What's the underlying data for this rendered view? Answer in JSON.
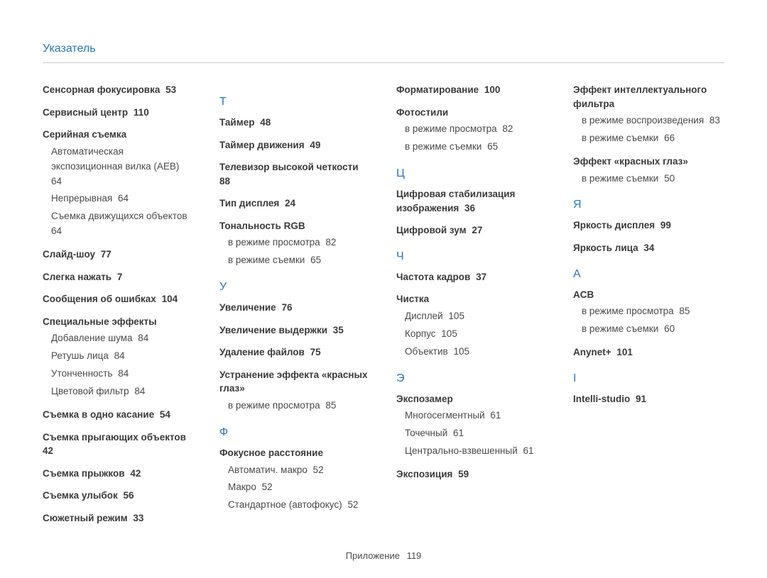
{
  "title": "Указатель",
  "footer": {
    "label": "Приложение",
    "page": "119"
  },
  "columns": [
    [
      {
        "type": "entry",
        "label": "Сенсорная фокусировка",
        "page": "53"
      },
      {
        "type": "entry",
        "label": "Сервисный центр",
        "page": "110"
      },
      {
        "type": "entry",
        "label": "Серийная съемка",
        "subs": [
          {
            "label": "Автоматическая экспозиционная вилка (AEB)",
            "page": "64"
          },
          {
            "label": "Непрерывная",
            "page": "64"
          },
          {
            "label": "Съемка движущихся объектов",
            "page": "64"
          }
        ]
      },
      {
        "type": "entry",
        "label": "Слайд-шоу",
        "page": "77"
      },
      {
        "type": "entry",
        "label": "Слегка нажать",
        "page": "7"
      },
      {
        "type": "entry",
        "label": "Сообщения об ошибках",
        "page": "104"
      },
      {
        "type": "entry",
        "label": "Специальные эффекты",
        "subs": [
          {
            "label": "Добавление шума",
            "page": "84"
          },
          {
            "label": "Ретушь лица",
            "page": "84"
          },
          {
            "label": "Утонченность",
            "page": "84"
          },
          {
            "label": "Цветовой фильтр",
            "page": "84"
          }
        ]
      },
      {
        "type": "entry",
        "label": "Съемка в одно касание",
        "page": "54"
      },
      {
        "type": "entry",
        "label": "Съемка прыгающих объектов",
        "page": "42"
      },
      {
        "type": "entry",
        "label": "Съемка прыжков",
        "page": "42"
      },
      {
        "type": "entry",
        "label": "Съемка улыбок",
        "page": "56"
      },
      {
        "type": "entry",
        "label": "Сюжетный режим",
        "page": "33"
      }
    ],
    [
      {
        "type": "letter",
        "label": "Т"
      },
      {
        "type": "entry",
        "label": "Таймер",
        "page": "48"
      },
      {
        "type": "entry",
        "label": "Таймер движения",
        "page": "49"
      },
      {
        "type": "entry",
        "label": "Телевизор высокой четкости",
        "page": "88"
      },
      {
        "type": "entry",
        "label": "Тип дисплея",
        "page": "24"
      },
      {
        "type": "entry",
        "label": "Тональность RGB",
        "subs": [
          {
            "label": "в режиме просмотра",
            "page": "82"
          },
          {
            "label": "в режиме съемки",
            "page": "65"
          }
        ]
      },
      {
        "type": "letter",
        "label": "У"
      },
      {
        "type": "entry",
        "label": "Увеличение",
        "page": "76"
      },
      {
        "type": "entry",
        "label": "Увеличение выдержки",
        "page": "35"
      },
      {
        "type": "entry",
        "label": "Удаление файлов",
        "page": "75"
      },
      {
        "type": "entry",
        "label": "Устранение эффекта «красных глаз»",
        "subs": [
          {
            "label": "в режиме просмотра",
            "page": "85"
          }
        ]
      },
      {
        "type": "letter",
        "label": "Ф"
      },
      {
        "type": "entry",
        "label": "Фокусное расстояние",
        "subs": [
          {
            "label": "Автоматич. макро",
            "page": "52"
          },
          {
            "label": "Макро",
            "page": "52"
          },
          {
            "label": "Стандартное (автофокус)",
            "page": "52"
          }
        ]
      }
    ],
    [
      {
        "type": "entry",
        "label": "Форматирование",
        "page": "100"
      },
      {
        "type": "entry",
        "label": "Фотостили",
        "subs": [
          {
            "label": "в режиме просмотра",
            "page": "82"
          },
          {
            "label": "в режиме съемки",
            "page": "65"
          }
        ]
      },
      {
        "type": "letter",
        "label": "Ц"
      },
      {
        "type": "entry",
        "label": "Цифровая стабилизация изображения",
        "page": "36"
      },
      {
        "type": "entry",
        "label": "Цифровой зум",
        "page": "27"
      },
      {
        "type": "letter",
        "label": "Ч"
      },
      {
        "type": "entry",
        "label": "Частота кадров",
        "page": "37"
      },
      {
        "type": "entry",
        "label": "Чистка",
        "subs": [
          {
            "label": "Дисплей",
            "page": "105"
          },
          {
            "label": "Корпус",
            "page": "105"
          },
          {
            "label": "Объектив",
            "page": "105"
          }
        ]
      },
      {
        "type": "letter",
        "label": "Э"
      },
      {
        "type": "entry",
        "label": "Экспозамер",
        "subs": [
          {
            "label": "Многосегментный",
            "page": "61"
          },
          {
            "label": "Точечный",
            "page": "61"
          },
          {
            "label": "Центрально-взвешенный",
            "page": "61"
          }
        ]
      },
      {
        "type": "entry",
        "label": "Экспозиция",
        "page": "59"
      }
    ],
    [
      {
        "type": "entry",
        "label": "Эффект интеллектуального фильтра",
        "subs": [
          {
            "label": "в режиме воспроизведения",
            "page": "83"
          },
          {
            "label": "в режиме съемки",
            "page": "66"
          }
        ]
      },
      {
        "type": "entry",
        "label": "Эффект «красных глаз»",
        "subs": [
          {
            "label": "в режиме съемки",
            "page": "50"
          }
        ]
      },
      {
        "type": "letter",
        "label": "Я"
      },
      {
        "type": "entry",
        "label": "Яркость дисплея",
        "page": "99"
      },
      {
        "type": "entry",
        "label": "Яркость лица",
        "page": "34"
      },
      {
        "type": "letter",
        "label": "A"
      },
      {
        "type": "entry",
        "label": "ACB",
        "subs": [
          {
            "label": "в режиме просмотра",
            "page": "85"
          },
          {
            "label": "в режиме съемки",
            "page": "60"
          }
        ]
      },
      {
        "type": "entry",
        "label": "Anynet+",
        "page": "101"
      },
      {
        "type": "letter",
        "label": "I"
      },
      {
        "type": "entry",
        "label": "Intelli-studio",
        "page": "91"
      }
    ]
  ]
}
